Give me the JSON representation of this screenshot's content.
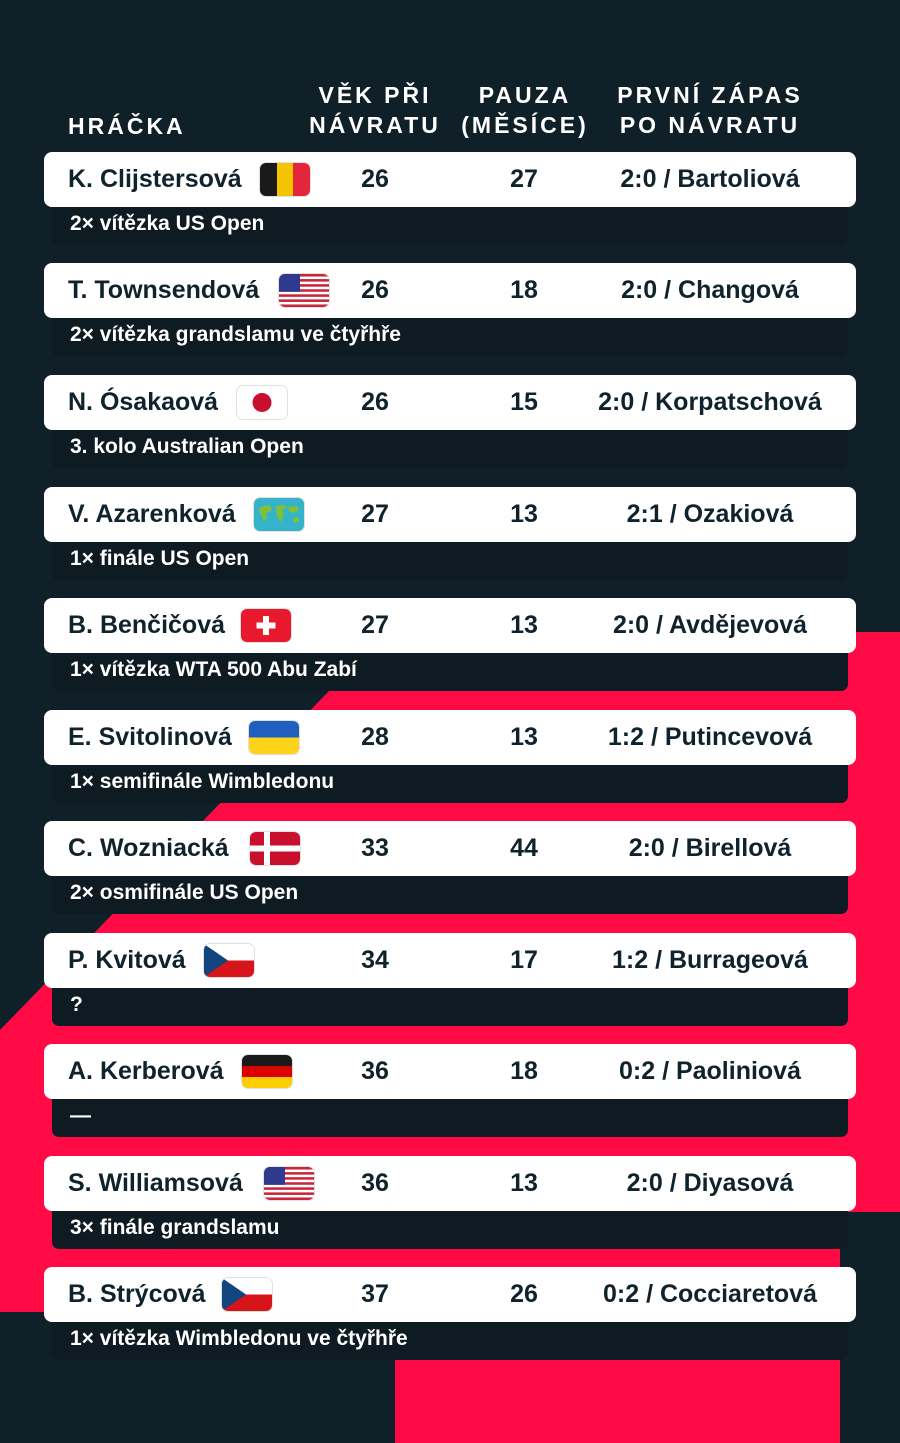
{
  "colors": {
    "dark": "#0f2028",
    "accent": "#ff0a45",
    "card": "#ffffff",
    "note": "#0f1b22"
  },
  "header": {
    "player": "HRÁČKA",
    "age_line1": "VĚK PŘI",
    "age_line2": "NÁVRATU",
    "pause_line1": "PAUZA",
    "pause_line2": "(MĚSÍCE)",
    "first_line1": "PRVNÍ ZÁPAS",
    "first_line2": "PO NÁVRATU"
  },
  "rows": [
    {
      "name": "K. Clijstersová",
      "flag": "belgium-flag-icon",
      "age": "26",
      "pause": "27",
      "first_match": "2:0 / Bartoliová",
      "note": "2× vítězka US Open"
    },
    {
      "name": "T. Townsendová",
      "flag": "usa-flag-icon",
      "age": "26",
      "pause": "18",
      "first_match": "2:0 / Changová",
      "note": "2× vítězka grandslamu ve čtyřhře"
    },
    {
      "name": "N. Ósakaová",
      "flag": "japan-flag-icon",
      "age": "26",
      "pause": "15",
      "first_match": "2:0 / Korpatschová",
      "note": "3. kolo Australian Open"
    },
    {
      "name": "V. Azarenková",
      "flag": "world-map-flag-icon",
      "age": "27",
      "pause": "13",
      "first_match": "2:1 / Ozakiová",
      "note": "1× finále US Open"
    },
    {
      "name": "B. Benčičová",
      "flag": "switzerland-flag-icon",
      "age": "27",
      "pause": "13",
      "first_match": "2:0 / Avdějevová",
      "note": "1× vítězka WTA 500 Abu Zabí"
    },
    {
      "name": "E. Svitolinová",
      "flag": "ukraine-flag-icon",
      "age": "28",
      "pause": "13",
      "first_match": "1:2 / Putincevová",
      "note": "1× semifinále Wimbledonu"
    },
    {
      "name": "C. Wozniacká",
      "flag": "denmark-flag-icon",
      "age": "33",
      "pause": "44",
      "first_match": "2:0 / Birellová",
      "note": "2× osmifinále US Open"
    },
    {
      "name": "P. Kvitová",
      "flag": "czechia-flag-icon",
      "age": "34",
      "pause": "17",
      "first_match": "1:2 / Burrageová",
      "note": "?"
    },
    {
      "name": "A. Kerberová",
      "flag": "germany-flag-icon",
      "age": "36",
      "pause": "18",
      "first_match": "0:2 / Paoliniová",
      "note": "—"
    },
    {
      "name": "S. Williamsová",
      "flag": "usa-flag-icon",
      "age": "36",
      "pause": "13",
      "first_match": "2:0 / Diyasová",
      "note": "3× finále grandslamu"
    },
    {
      "name": "B. Strýcová",
      "flag": "czechia-flag-icon",
      "age": "37",
      "pause": "26",
      "first_match": "0:2 / Cocciaretová",
      "note": "1× vítězka Wimbledonu ve čtyřhře"
    }
  ]
}
